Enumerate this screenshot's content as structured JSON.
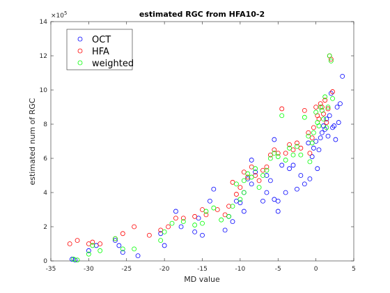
{
  "chart_data": {
    "type": "scatter",
    "title": "estimated RGC from HFA10-2",
    "xlabel": "MD value",
    "ylabel": "estimated num of RGC",
    "y_exponent_label": "×10",
    "y_exponent_power": "5",
    "xlim": [
      -35,
      5
    ],
    "ylim": [
      0,
      14
    ],
    "xticks": [
      "-35",
      "-30",
      "-25",
      "-20",
      "-15",
      "-10",
      "-5",
      "0",
      "5"
    ],
    "yticks": [
      "0",
      "2",
      "4",
      "6",
      "8",
      "10",
      "12",
      "14"
    ],
    "legend_position": "top-left",
    "grid": false,
    "series": [
      {
        "name": "OCT",
        "color": "#0000ff",
        "points": [
          [
            -32.2,
            0.1
          ],
          [
            -31.8,
            0.05
          ],
          [
            -30,
            0.6
          ],
          [
            -29,
            0.9
          ],
          [
            -26.5,
            1.2
          ],
          [
            -26,
            0.9
          ],
          [
            -25.5,
            0.5
          ],
          [
            -23.5,
            0.3
          ],
          [
            -20.5,
            1.6
          ],
          [
            -20,
            0.9
          ],
          [
            -18.5,
            2.9
          ],
          [
            -17.8,
            2.0
          ],
          [
            -16,
            1.7
          ],
          [
            -15.5,
            2.5
          ],
          [
            -15,
            1.5
          ],
          [
            -14,
            3.5
          ],
          [
            -13.5,
            4.2
          ],
          [
            -12,
            1.8
          ],
          [
            -11.5,
            2.6
          ],
          [
            -11,
            2.3
          ],
          [
            -10.5,
            3.5
          ],
          [
            -10,
            3.4
          ],
          [
            -9.5,
            2.9
          ],
          [
            -9.5,
            4.0
          ],
          [
            -9,
            4.8
          ],
          [
            -8.5,
            4.5
          ],
          [
            -8.5,
            5.9
          ],
          [
            -8,
            5.2
          ],
          [
            -7,
            3.5
          ],
          [
            -6.5,
            5.0
          ],
          [
            -6.5,
            4.0
          ],
          [
            -6,
            4.7
          ],
          [
            -5.5,
            7.1
          ],
          [
            -5.5,
            3.6
          ],
          [
            -5,
            2.9
          ],
          [
            -5,
            3.5
          ],
          [
            -4.5,
            5.6
          ],
          [
            -4,
            4.0
          ],
          [
            -3.5,
            5.4
          ],
          [
            -3,
            5.6
          ],
          [
            -2.5,
            4.2
          ],
          [
            -2,
            5.0
          ],
          [
            -1.5,
            4.5
          ],
          [
            -1,
            6.9
          ],
          [
            -0.8,
            4.8
          ],
          [
            -0.5,
            6.1
          ],
          [
            -0.3,
            6.6
          ],
          [
            0,
            7.0
          ],
          [
            0.2,
            5.4
          ],
          [
            0.4,
            6.5
          ],
          [
            0.6,
            7.2
          ],
          [
            0.8,
            7.5
          ],
          [
            1.0,
            7.9
          ],
          [
            1.2,
            7.7
          ],
          [
            1.4,
            8.3
          ],
          [
            1.6,
            7.3
          ],
          [
            1.8,
            8.5
          ],
          [
            2.0,
            9.8
          ],
          [
            2.2,
            7.8
          ],
          [
            2.4,
            7.9
          ],
          [
            2.6,
            7.1
          ],
          [
            2.8,
            9.0
          ],
          [
            3.0,
            8.1
          ],
          [
            3.2,
            9.2
          ],
          [
            3.5,
            10.8
          ]
        ]
      },
      {
        "name": "HFA",
        "color": "#ff0000",
        "points": [
          [
            -32.5,
            1.0
          ],
          [
            -31.5,
            1.2
          ],
          [
            -30,
            1.0
          ],
          [
            -29.5,
            1.1
          ],
          [
            -28.5,
            1.0
          ],
          [
            -26.5,
            1.3
          ],
          [
            -25.5,
            1.6
          ],
          [
            -24,
            2.0
          ],
          [
            -22,
            1.5
          ],
          [
            -20.5,
            1.8
          ],
          [
            -19.5,
            2.0
          ],
          [
            -18.5,
            2.5
          ],
          [
            -17.5,
            2.5
          ],
          [
            -16,
            2.6
          ],
          [
            -15,
            3.0
          ],
          [
            -14.5,
            2.7
          ],
          [
            -13,
            3.0
          ],
          [
            -12,
            2.7
          ],
          [
            -11.5,
            3.2
          ],
          [
            -11,
            4.6
          ],
          [
            -10.5,
            3.9
          ],
          [
            -10,
            4.3
          ],
          [
            -9.5,
            5.2
          ],
          [
            -9,
            4.9
          ],
          [
            -8.5,
            5.5
          ],
          [
            -8,
            5.0
          ],
          [
            -7.5,
            4.7
          ],
          [
            -7,
            5.3
          ],
          [
            -6.5,
            5.5
          ],
          [
            -6,
            6.2
          ],
          [
            -5.5,
            6.5
          ],
          [
            -5,
            6.3
          ],
          [
            -4.5,
            8.9
          ],
          [
            -4,
            6.3
          ],
          [
            -3.5,
            6.8
          ],
          [
            -3,
            6.5
          ],
          [
            -2.5,
            6.9
          ],
          [
            -2,
            6.6
          ],
          [
            -1.5,
            8.8
          ],
          [
            -1,
            7.5
          ],
          [
            -0.8,
            6.3
          ],
          [
            -0.5,
            7.2
          ],
          [
            -0.3,
            7.8
          ],
          [
            0,
            9.0
          ],
          [
            0.2,
            8.5
          ],
          [
            0.4,
            8.3
          ],
          [
            0.6,
            9.2
          ],
          [
            0.8,
            9.0
          ],
          [
            1.0,
            8.6
          ],
          [
            1.2,
            9.4
          ],
          [
            1.4,
            8.1
          ],
          [
            1.6,
            8.9
          ],
          [
            1.8,
            12.0
          ],
          [
            2.0,
            11.8
          ],
          [
            2.2,
            9.9
          ]
        ]
      },
      {
        "name": "weighted",
        "color": "#00ff00",
        "points": [
          [
            -32,
            0.1
          ],
          [
            -31.5,
            0.05
          ],
          [
            -30,
            0.4
          ],
          [
            -29.5,
            0.9
          ],
          [
            -28.5,
            0.6
          ],
          [
            -26.5,
            1.3
          ],
          [
            -25.5,
            0.7
          ],
          [
            -24,
            0.7
          ],
          [
            -20.5,
            1.2
          ],
          [
            -20,
            1.7
          ],
          [
            -19,
            2.2
          ],
          [
            -17.5,
            2.3
          ],
          [
            -16,
            2.1
          ],
          [
            -15,
            2.2
          ],
          [
            -14.5,
            2.9
          ],
          [
            -13.5,
            3.1
          ],
          [
            -12.5,
            2.4
          ],
          [
            -11.5,
            2.6
          ],
          [
            -11,
            3.2
          ],
          [
            -10.5,
            4.5
          ],
          [
            -10,
            3.6
          ],
          [
            -9.5,
            4.0
          ],
          [
            -9.5,
            4.7
          ],
          [
            -9,
            5.1
          ],
          [
            -8.5,
            4.9
          ],
          [
            -8,
            5.4
          ],
          [
            -7.5,
            4.3
          ],
          [
            -7,
            5.0
          ],
          [
            -6.5,
            5.3
          ],
          [
            -6,
            6.0
          ],
          [
            -5.5,
            6.3
          ],
          [
            -5,
            6.1
          ],
          [
            -4.5,
            8.5
          ],
          [
            -4,
            5.9
          ],
          [
            -3.5,
            6.6
          ],
          [
            -3,
            6.2
          ],
          [
            -2.5,
            6.7
          ],
          [
            -2,
            6.2
          ],
          [
            -1.5,
            8.4
          ],
          [
            -1,
            7.3
          ],
          [
            -0.8,
            5.8
          ],
          [
            -0.5,
            6.9
          ],
          [
            -0.3,
            7.5
          ],
          [
            0,
            8.7
          ],
          [
            0.2,
            8.1
          ],
          [
            0.4,
            7.9
          ],
          [
            0.6,
            9.0
          ],
          [
            0.8,
            8.8
          ],
          [
            1.0,
            8.3
          ],
          [
            1.2,
            9.6
          ],
          [
            1.4,
            7.8
          ],
          [
            1.6,
            9.0
          ],
          [
            1.8,
            12.0
          ],
          [
            2.0,
            11.7
          ],
          [
            2.2,
            9.5
          ]
        ]
      }
    ]
  }
}
